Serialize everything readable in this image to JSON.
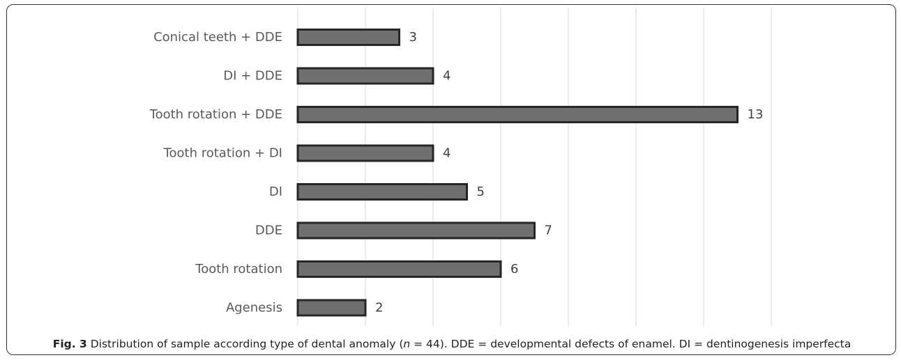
{
  "figure": {
    "caption_label": "Fig. 3",
    "caption_part1": " Distribution of sample according type of dental anomaly (",
    "caption_n_var": "n",
    "caption_part2": " = 44). DDE = developmental defects of enamel. DI = dentinogenesis imperfecta"
  },
  "chart_data": {
    "type": "bar",
    "orientation": "horizontal",
    "categories": [
      "Conical teeth + DDE",
      "DI + DDE",
      "Tooth rotation + DDE",
      "Tooth rotation + DI",
      "DI",
      "DDE",
      "Tooth rotation",
      "Agenesis"
    ],
    "values": [
      3,
      4,
      13,
      4,
      5,
      7,
      6,
      2
    ],
    "data_labels": [
      "3",
      "4",
      "13",
      "4",
      "5",
      "7",
      "6",
      "2"
    ],
    "xlim": [
      0,
      14
    ],
    "grid": "vertical",
    "legend": "none",
    "colors": {
      "bar_fill": "#6f6f6f",
      "bar_outline": "#262626",
      "grid": "#d9d9d9"
    }
  }
}
